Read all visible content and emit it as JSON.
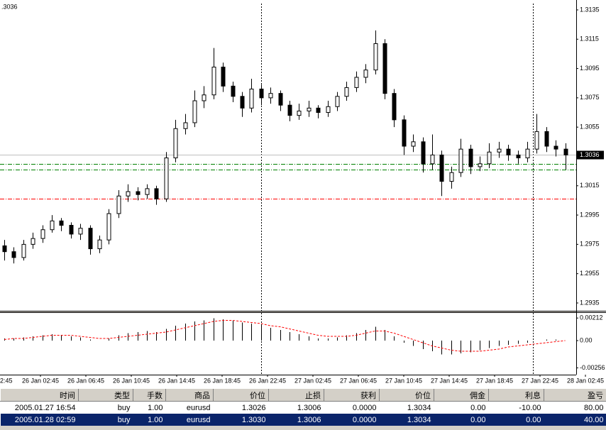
{
  "chart_data": [
    {
      "type": "candlestick",
      "corner_label": ".3036",
      "open": [
        1.2974,
        1.297,
        1.2966,
        1.2975,
        1.2979,
        1.2985,
        1.2991,
        1.2988,
        1.2982,
        1.2986,
        1.2972,
        1.2978,
        1.2996,
        1.3008,
        1.3011,
        1.3009,
        1.3013,
        1.3006,
        1.3034,
        1.3054,
        1.3058,
        1.3073,
        1.3077,
        1.3096,
        1.3083,
        1.3076,
        1.3068,
        1.3081,
        1.3075,
        1.3078,
        1.307,
        1.3063,
        1.3066,
        1.3068,
        1.3065,
        1.3069,
        1.3076,
        1.3082,
        1.3089,
        1.3094,
        1.3112,
        1.3078,
        1.306,
        1.3042,
        1.3045,
        1.303,
        1.3036,
        1.3018,
        1.3024,
        1.304,
        1.3028,
        1.303,
        1.3038,
        1.304,
        1.3036,
        1.3034,
        1.304,
        1.3052,
        1.3042,
        1.304
      ],
      "high": [
        1.2978,
        1.2973,
        1.2978,
        1.2983,
        1.2988,
        1.2995,
        1.2993,
        1.299,
        1.2989,
        1.2988,
        1.2981,
        1.2999,
        1.3012,
        1.3016,
        1.3014,
        1.3016,
        1.3015,
        1.3038,
        1.306,
        1.3064,
        1.308,
        1.3083,
        1.3109,
        1.3099,
        1.3086,
        1.3079,
        1.3088,
        1.3084,
        1.3082,
        1.308,
        1.3073,
        1.3071,
        1.3073,
        1.307,
        1.3073,
        1.3079,
        1.3086,
        1.3093,
        1.3098,
        1.3121,
        1.3115,
        1.3081,
        1.3063,
        1.305,
        1.3048,
        1.305,
        1.3039,
        1.3028,
        1.3047,
        1.3043,
        1.3035,
        1.3044,
        1.3045,
        1.3043,
        1.3039,
        1.3045,
        1.3064,
        1.3055,
        1.3046,
        1.3044
      ],
      "low": [
        1.2964,
        1.2962,
        1.2964,
        1.2972,
        1.2976,
        1.2983,
        1.2984,
        1.2979,
        1.2978,
        1.2968,
        1.2969,
        1.2975,
        1.2993,
        1.3004,
        1.3005,
        1.3006,
        1.3002,
        1.3004,
        1.3031,
        1.305,
        1.3055,
        1.3068,
        1.3074,
        1.3079,
        1.3072,
        1.3062,
        1.3065,
        1.307,
        1.3071,
        1.3066,
        1.3059,
        1.306,
        1.3062,
        1.3061,
        1.3062,
        1.3066,
        1.3073,
        1.3079,
        1.3085,
        1.3091,
        1.3074,
        1.3055,
        1.3036,
        1.3038,
        1.3024,
        1.3026,
        1.3008,
        1.3013,
        1.3021,
        1.3023,
        1.3025,
        1.3027,
        1.3034,
        1.3032,
        1.303,
        1.3031,
        1.3037,
        1.3038,
        1.3035,
        1.3026
      ],
      "close": [
        1.297,
        1.2966,
        1.2975,
        1.2979,
        1.2985,
        1.2991,
        1.2988,
        1.2982,
        1.2986,
        1.2972,
        1.2978,
        1.2996,
        1.3008,
        1.3011,
        1.3009,
        1.3013,
        1.3006,
        1.3034,
        1.3054,
        1.3058,
        1.3073,
        1.3077,
        1.3096,
        1.3083,
        1.3076,
        1.3068,
        1.3081,
        1.3075,
        1.3078,
        1.307,
        1.3063,
        1.3066,
        1.3068,
        1.3065,
        1.3069,
        1.3076,
        1.3082,
        1.3089,
        1.3094,
        1.3112,
        1.3078,
        1.306,
        1.3042,
        1.3045,
        1.303,
        1.3036,
        1.3018,
        1.3024,
        1.304,
        1.3028,
        1.303,
        1.3038,
        1.304,
        1.3036,
        1.3034,
        1.304,
        1.3052,
        1.3042,
        1.304,
        1.3036
      ],
      "color": "#000000",
      "ylim": [
        1.293,
        1.3139
      ],
      "yticks": [
        1.2935,
        1.2955,
        1.2975,
        1.2995,
        1.3015,
        1.3055,
        1.3075,
        1.3095,
        1.3115,
        1.3135
      ],
      "last": 1.3036,
      "levels": [
        {
          "value": 1.303,
          "color": "#008000"
        },
        {
          "value": 1.3026,
          "color": "#008000"
        },
        {
          "value": 1.3006,
          "color": "#ff0000"
        }
      ],
      "x_labels": [
        "2:45",
        "26 Jan 02:45",
        "26 Jan 06:45",
        "26 Jan 10:45",
        "26 Jan 14:45",
        "26 Jan 18:45",
        "26 Jan 22:45",
        "27 Jan 02:45",
        "27 Jan 06:45",
        "27 Jan 10:45",
        "27 Jan 14:45",
        "27 Jan 18:45",
        "27 Jan 22:45",
        "28 Jan 02:45"
      ]
    },
    {
      "type": "macd",
      "histogram": {
        "color": "#000000",
        "values": [
          0.0002,
          0.0002,
          0.0003,
          0.0004,
          0.0005,
          0.0006,
          0.0005,
          0.0004,
          0.0003,
          0.0001,
          0.0,
          0.0002,
          0.0005,
          0.0007,
          0.0008,
          0.0009,
          0.0008,
          0.0011,
          0.0014,
          0.0016,
          0.0018,
          0.0019,
          0.0021,
          0.002,
          0.0019,
          0.0017,
          0.0016,
          0.0014,
          0.0012,
          0.001,
          0.0008,
          0.0006,
          0.0004,
          0.0002,
          0.0002,
          0.0003,
          0.0005,
          0.0007,
          0.001,
          0.0013,
          0.001,
          0.0004,
          -0.0002,
          -0.0005,
          -0.0008,
          -0.001,
          -0.0013,
          -0.0013,
          -0.0012,
          -0.0011,
          -0.0009,
          -0.0007,
          -0.0005,
          -0.0004,
          -0.0003,
          -0.0002,
          0.0,
          0.0001,
          0.0001,
          0.0
        ]
      },
      "signal": {
        "color": "#ff0000",
        "values": [
          0.0001,
          0.0002,
          0.0002,
          0.0003,
          0.0004,
          0.0005,
          0.0005,
          0.0005,
          0.0004,
          0.0003,
          0.0002,
          0.0002,
          0.0003,
          0.0004,
          0.0005,
          0.0006,
          0.0007,
          0.0008,
          0.001,
          0.0012,
          0.0014,
          0.0016,
          0.0018,
          0.0019,
          0.0019,
          0.0018,
          0.0017,
          0.0016,
          0.0014,
          0.0013,
          0.0011,
          0.0009,
          0.0007,
          0.0005,
          0.0004,
          0.0004,
          0.0004,
          0.0005,
          0.0007,
          0.0009,
          0.0009,
          0.0007,
          0.0004,
          0.0001,
          -0.0002,
          -0.0005,
          -0.0007,
          -0.0009,
          -0.001,
          -0.001,
          -0.001,
          -0.0009,
          -0.0008,
          -0.0006,
          -0.0005,
          -0.0004,
          -0.0003,
          -0.0002,
          -0.0001,
          0.0
        ]
      },
      "ylim": [
        -0.0032,
        0.0026
      ],
      "yticks": [
        0.00212,
        {
          "value": 0,
          "label": "0.00"
        },
        -0.00256
      ]
    }
  ],
  "table": {
    "header": [
      "时间",
      "类型",
      "手数",
      "商品",
      "价位",
      "止损",
      "获利",
      "价位",
      "佣金",
      "利息",
      "盈亏"
    ],
    "rows": [
      [
        "2005.01.27 16:54",
        "buy",
        "1.00",
        "eurusd",
        "1.3026",
        "1.3006",
        "0.0000",
        "1.3034",
        "0.00",
        "-10.00",
        "80.00"
      ],
      [
        "2005.01.28 02:59",
        "buy",
        "1.00",
        "eurusd",
        "1.3030",
        "1.3006",
        "0.0000",
        "1.3034",
        "0.00",
        "0.00",
        "40.00"
      ]
    ]
  }
}
